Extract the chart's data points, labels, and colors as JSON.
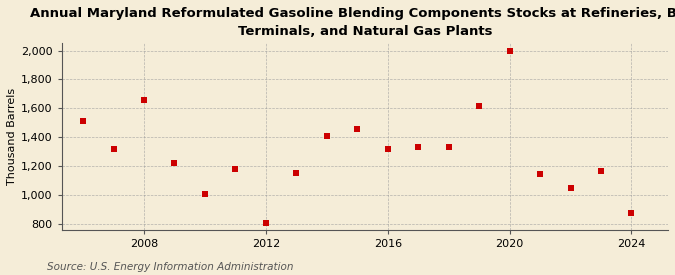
{
  "title": "Annual Maryland Reformulated Gasoline Blending Components Stocks at Refineries, Bulk\nTerminals, and Natural Gas Plants",
  "ylabel": "Thousand Barrels",
  "source": "Source: U.S. Energy Information Administration",
  "years": [
    2006,
    2007,
    2008,
    2009,
    2010,
    2011,
    2012,
    2013,
    2014,
    2015,
    2016,
    2017,
    2018,
    2019,
    2020,
    2021,
    2022,
    2023,
    2024
  ],
  "values": [
    1510,
    1320,
    1655,
    1225,
    1010,
    1180,
    805,
    1150,
    1410,
    1460,
    1320,
    1330,
    1330,
    1615,
    1995,
    1145,
    1050,
    1165,
    875
  ],
  "marker_color": "#cc0000",
  "marker_size": 22,
  "background_color": "#f5edd8",
  "grid_color": "#999999",
  "ylim": [
    760,
    2050
  ],
  "yticks": [
    800,
    1000,
    1200,
    1400,
    1600,
    1800,
    2000
  ],
  "xticks": [
    2008,
    2012,
    2016,
    2020,
    2024
  ],
  "title_fontsize": 9.5,
  "ylabel_fontsize": 8,
  "tick_fontsize": 8,
  "source_fontsize": 7.5
}
